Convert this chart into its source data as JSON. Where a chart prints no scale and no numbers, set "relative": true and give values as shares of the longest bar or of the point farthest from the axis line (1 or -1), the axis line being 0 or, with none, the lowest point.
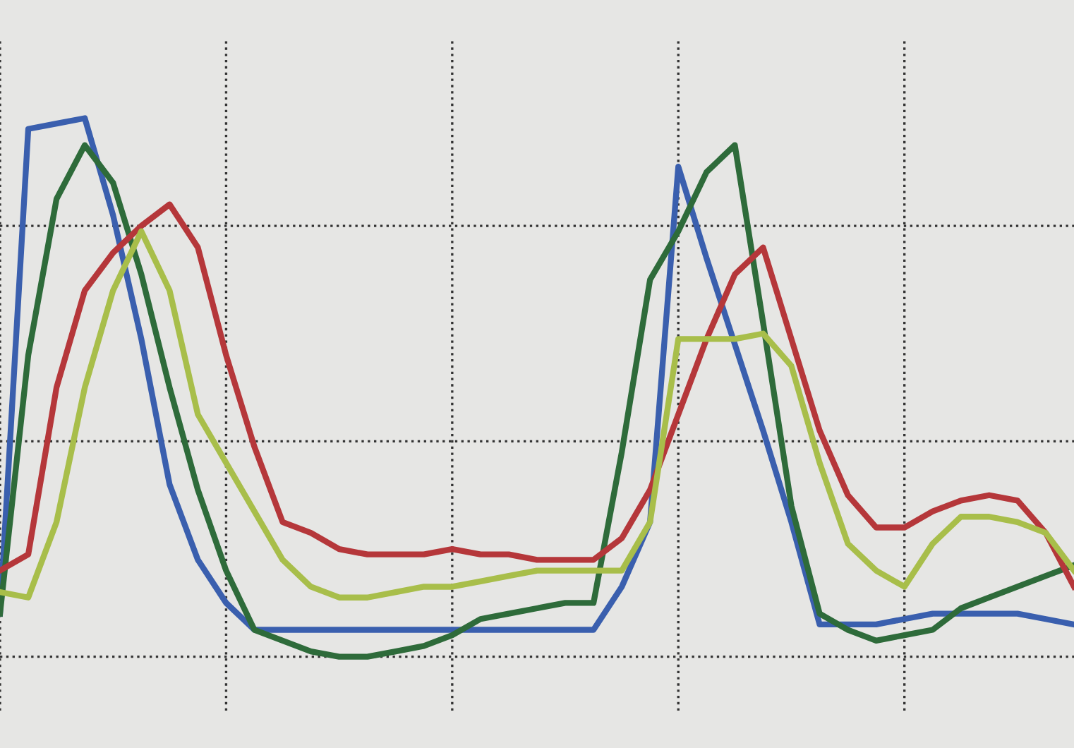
{
  "chart_data": {
    "type": "line",
    "relative": true,
    "grid": true,
    "tick_labels": false,
    "line_style": "solid",
    "marker": "none",
    "categories": [
      null,
      null,
      null,
      null,
      null,
      null,
      null,
      null,
      null,
      null,
      null,
      null,
      null,
      null,
      null,
      null,
      null,
      null,
      null,
      null,
      null,
      null,
      null,
      null,
      null,
      null,
      null,
      null,
      null,
      null,
      null,
      null,
      null,
      null,
      null,
      null,
      null,
      null,
      null
    ],
    "series": [
      {
        "color": "#3a5fae",
        "values": [
          0.08,
          0.98,
          0.99,
          1.0,
          0.82,
          0.59,
          0.32,
          0.18,
          0.1,
          0.05,
          0.05,
          0.05,
          0.05,
          0.05,
          0.05,
          0.05,
          0.05,
          0.05,
          0.05,
          0.05,
          0.05,
          0.05,
          0.13,
          0.25,
          0.91,
          0.74,
          0.58,
          0.42,
          0.25,
          0.06,
          0.06,
          0.06,
          0.07,
          0.08,
          0.08,
          0.08,
          0.08,
          0.07,
          0.06
        ]
      },
      {
        "color": "#2e6b3a",
        "values": [
          0.08,
          0.56,
          0.85,
          0.95,
          0.88,
          0.71,
          0.5,
          0.31,
          0.16,
          0.05,
          0.03,
          0.01,
          0.0,
          0.0,
          0.01,
          0.02,
          0.04,
          0.07,
          0.08,
          0.09,
          0.1,
          0.1,
          0.38,
          0.7,
          0.79,
          0.9,
          0.95,
          0.62,
          0.28,
          0.08,
          0.05,
          0.03,
          0.04,
          0.05,
          0.09,
          0.11,
          0.13,
          0.15,
          0.17
        ]
      },
      {
        "color": "#b5373a",
        "values": [
          0.16,
          0.19,
          0.5,
          0.68,
          0.75,
          0.8,
          0.84,
          0.76,
          0.56,
          0.39,
          0.25,
          0.23,
          0.2,
          0.19,
          0.19,
          0.19,
          0.2,
          0.19,
          0.19,
          0.18,
          0.18,
          0.18,
          0.22,
          0.31,
          0.45,
          0.59,
          0.71,
          0.76,
          0.59,
          0.42,
          0.3,
          0.24,
          0.24,
          0.27,
          0.29,
          0.3,
          0.29,
          0.23,
          0.13
        ]
      },
      {
        "color": "#a8be4a",
        "values": [
          0.12,
          0.11,
          0.25,
          0.5,
          0.68,
          0.79,
          0.68,
          0.45,
          0.36,
          0.27,
          0.18,
          0.13,
          0.11,
          0.11,
          0.12,
          0.13,
          0.13,
          0.14,
          0.15,
          0.16,
          0.16,
          0.16,
          0.16,
          0.25,
          0.59,
          0.59,
          0.59,
          0.6,
          0.54,
          0.36,
          0.21,
          0.16,
          0.13,
          0.21,
          0.26,
          0.26,
          0.25,
          0.23,
          0.16
        ]
      }
    ]
  }
}
